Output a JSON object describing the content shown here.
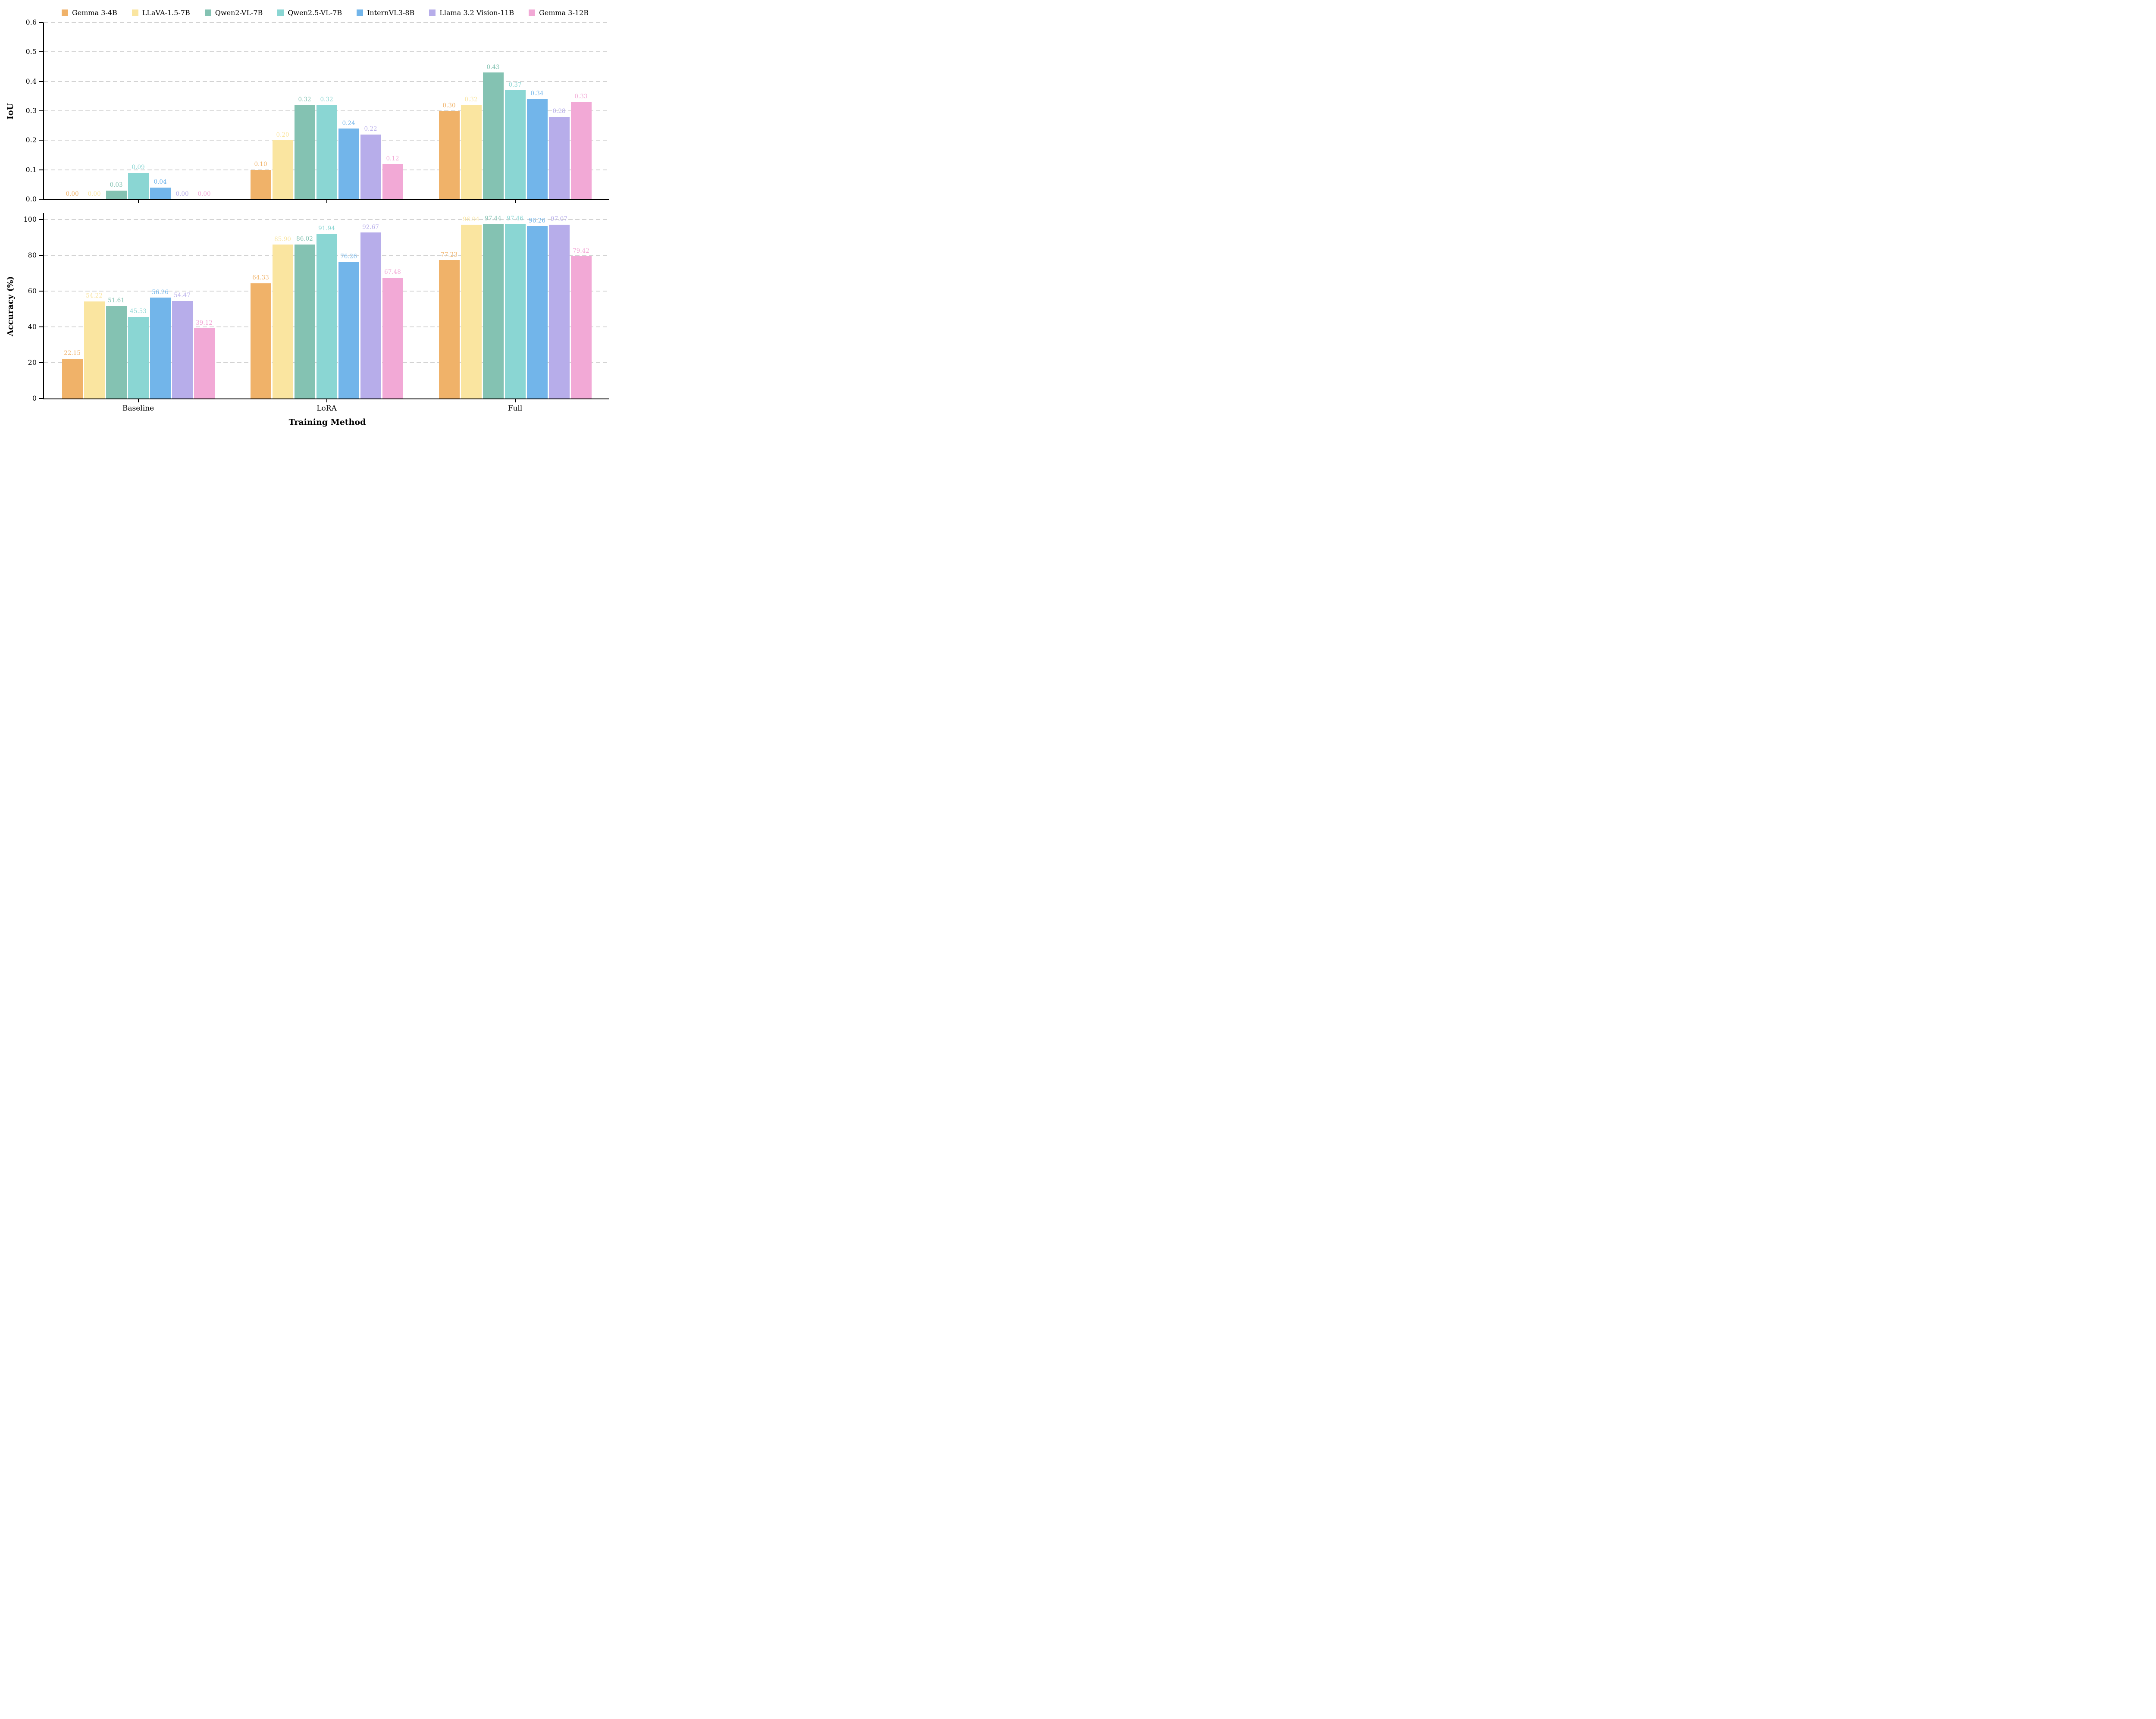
{
  "figure": {
    "xlabel": "Training Method",
    "categories": [
      "Baseline",
      "LoRA",
      "Full"
    ],
    "axis_color": "#000000",
    "grid_color": "#d3d3d3",
    "background": "#ffffff",
    "legend": [
      {
        "label": "Gemma 3-4B",
        "color": "#f0b269"
      },
      {
        "label": "LLaVA-1.5-7B",
        "color": "#fae5a0"
      },
      {
        "label": "Qwen2-VL-7B",
        "color": "#84c2b2"
      },
      {
        "label": "Qwen2.5-VL-7B",
        "color": "#8ad6d3"
      },
      {
        "label": "InternVL3-8B",
        "color": "#72b5ea"
      },
      {
        "label": "Llama 3.2 Vision-11B",
        "color": "#b7adea"
      },
      {
        "label": "Gemma 3-12B",
        "color": "#f2a9d6"
      }
    ]
  },
  "chart_data": [
    {
      "type": "bar",
      "title": "",
      "ylabel": "IoU",
      "xlabel": "",
      "categories": [
        "Baseline",
        "LoRA",
        "Full"
      ],
      "ylim": [
        0,
        0.6
      ],
      "plot_ymax": 0.6,
      "yticks": [
        0.0,
        0.1,
        0.2,
        0.3,
        0.4,
        0.5,
        0.6
      ],
      "ytick_labels": [
        "0.0",
        "0.1",
        "0.2",
        "0.3",
        "0.4",
        "0.5",
        "0.6"
      ],
      "grid": "horizontal-dashed",
      "legend_position": "above-figure",
      "value_label_decimals": 2,
      "series": [
        {
          "name": "Gemma 3-4B",
          "color": "#f0b269",
          "values": [
            0.0,
            0.1,
            0.3
          ]
        },
        {
          "name": "LLaVA-1.5-7B",
          "color": "#fae5a0",
          "values": [
            0.0,
            0.2,
            0.32
          ]
        },
        {
          "name": "Qwen2-VL-7B",
          "color": "#84c2b2",
          "values": [
            0.03,
            0.32,
            0.43
          ]
        },
        {
          "name": "Qwen2.5-VL-7B",
          "color": "#8ad6d3",
          "values": [
            0.09,
            0.32,
            0.37
          ]
        },
        {
          "name": "InternVL3-8B",
          "color": "#72b5ea",
          "values": [
            0.04,
            0.24,
            0.34
          ]
        },
        {
          "name": "Llama 3.2 Vision-11B",
          "color": "#b7adea",
          "values": [
            0.0,
            0.22,
            0.28
          ]
        },
        {
          "name": "Gemma 3-12B",
          "color": "#f2a9d6",
          "values": [
            0.0,
            0.12,
            0.33
          ]
        }
      ]
    },
    {
      "type": "bar",
      "title": "",
      "ylabel": "Accuracy (%)",
      "xlabel": "Training Method",
      "categories": [
        "Baseline",
        "LoRA",
        "Full"
      ],
      "ylim": [
        0,
        100
      ],
      "plot_ymax": 103.5,
      "yticks": [
        0,
        20,
        40,
        60,
        80,
        100
      ],
      "ytick_labels": [
        "0",
        "20",
        "40",
        "60",
        "80",
        "100"
      ],
      "grid": "horizontal-dashed",
      "value_label_decimals": 2,
      "series": [
        {
          "name": "Gemma 3-4B",
          "color": "#f0b269",
          "values": [
            22.15,
            64.33,
            77.23
          ]
        },
        {
          "name": "LLaVA-1.5-7B",
          "color": "#fae5a0",
          "values": [
            54.22,
            85.9,
            96.94
          ]
        },
        {
          "name": "Qwen2-VL-7B",
          "color": "#84c2b2",
          "values": [
            51.61,
            86.02,
            97.44
          ]
        },
        {
          "name": "Qwen2.5-VL-7B",
          "color": "#8ad6d3",
          "values": [
            45.53,
            91.94,
            97.46
          ]
        },
        {
          "name": "InternVL3-8B",
          "color": "#72b5ea",
          "values": [
            56.26,
            76.26,
            96.26
          ]
        },
        {
          "name": "Llama 3.2 Vision-11B",
          "color": "#b7adea",
          "values": [
            54.47,
            92.67,
            97.07
          ]
        },
        {
          "name": "Gemma 3-12B",
          "color": "#f2a9d6",
          "values": [
            39.12,
            67.48,
            79.42
          ]
        }
      ]
    }
  ]
}
